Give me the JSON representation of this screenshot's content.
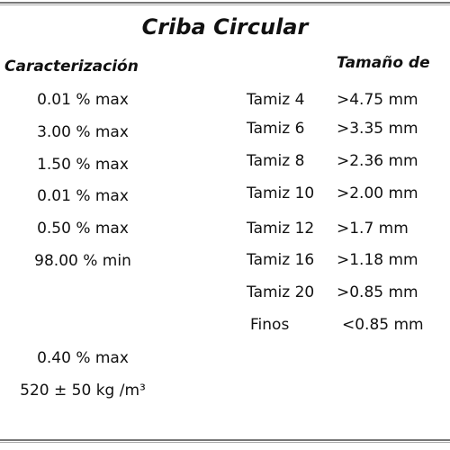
{
  "title": "Criba Circular",
  "left": {
    "header": "Caracterización",
    "rows": [
      "0.01 % max",
      "3.00 % max",
      "1.50 % max",
      "0.01 % max",
      "0.50 % max",
      "98.00 % min"
    ],
    "extra": [
      "0.40 % max",
      "520 ± 50 kg /m³"
    ]
  },
  "right": {
    "header": "Tamaño de",
    "rows": [
      {
        "sieve": "Tamiz 4",
        "size": ">4.75 mm"
      },
      {
        "sieve": "Tamiz 6",
        "size": ">3.35 mm"
      },
      {
        "sieve": "Tamiz 8",
        "size": ">2.36 mm"
      },
      {
        "sieve": "Tamiz 10",
        "size": ">2.00 mm"
      },
      {
        "sieve": "Tamiz 12",
        "size": ">1.7 mm"
      },
      {
        "sieve": "Tamiz 16",
        "size": ">1.18 mm"
      },
      {
        "sieve": "Tamiz 20",
        "size": ">0.85 mm"
      },
      {
        "sieve": "Finos",
        "size": "<0.85 mm"
      }
    ]
  }
}
